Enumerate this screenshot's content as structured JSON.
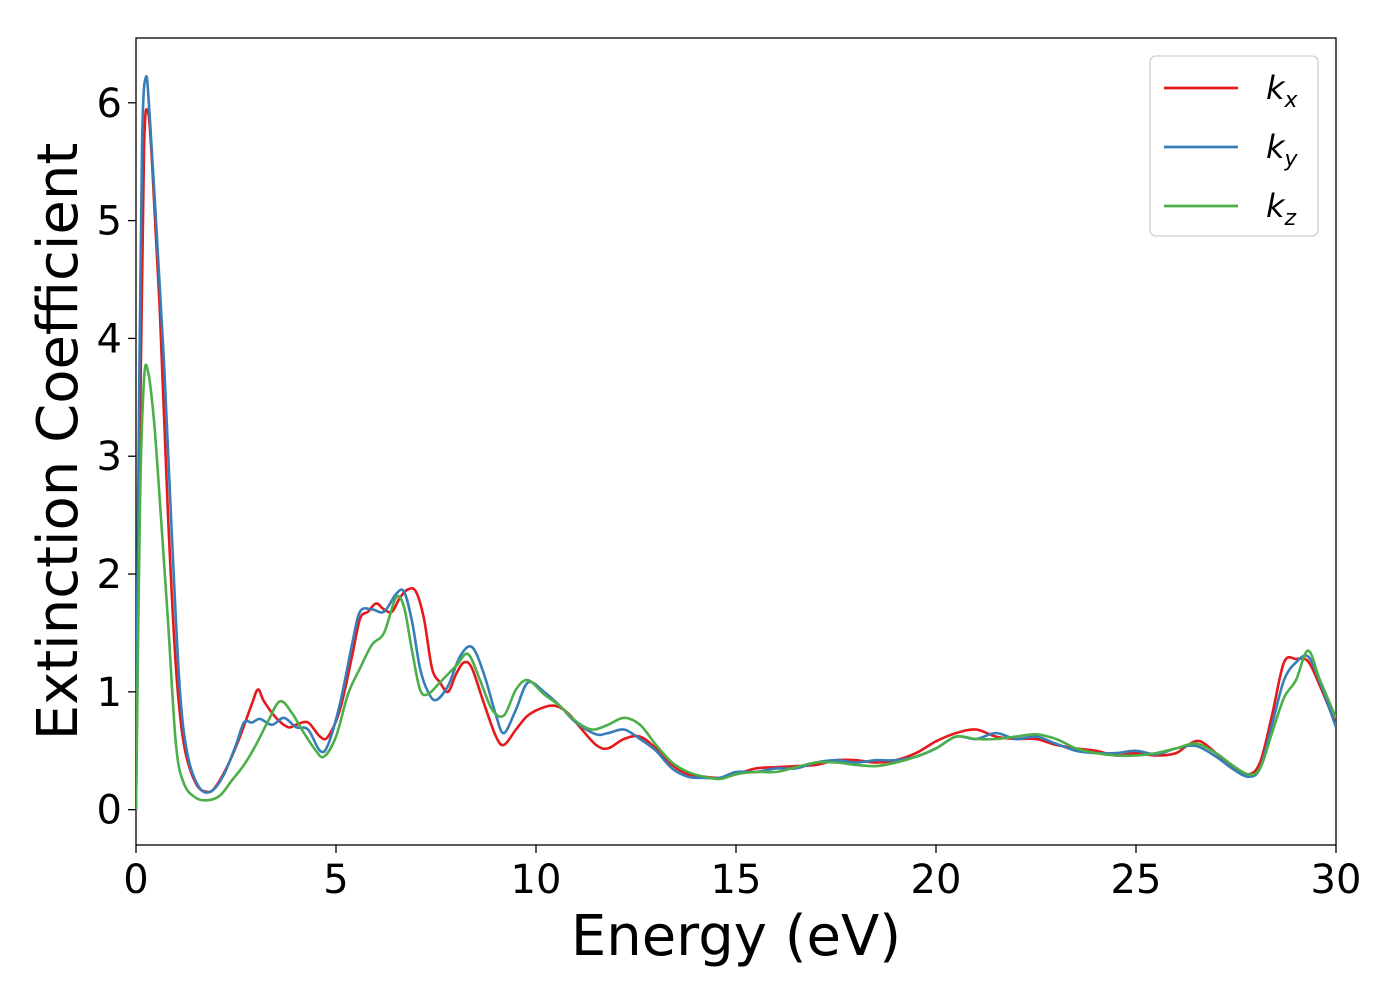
{
  "chart_data": {
    "type": "line",
    "title": "",
    "xlabel": "Energy (eV)",
    "ylabel": "Extinction Coefficient",
    "xlim": [
      0,
      30
    ],
    "ylim": [
      -0.3,
      6.55
    ],
    "xticks": [
      "0",
      "5",
      "10",
      "15",
      "20",
      "25",
      "30"
    ],
    "yticks": [
      "0",
      "1",
      "2",
      "3",
      "4",
      "5",
      "6"
    ],
    "grid": false,
    "legend_position": "top-right",
    "series": [
      {
        "name": "k",
        "subscript": "x",
        "color": "#e41a1c",
        "points": [
          [
            0,
            0.0
          ],
          [
            0.1,
            3.2
          ],
          [
            0.2,
            5.6
          ],
          [
            0.3,
            5.92
          ],
          [
            0.4,
            5.5
          ],
          [
            0.6,
            4.2
          ],
          [
            0.8,
            2.5
          ],
          [
            1.0,
            1.2
          ],
          [
            1.2,
            0.55
          ],
          [
            1.5,
            0.22
          ],
          [
            1.8,
            0.15
          ],
          [
            2.0,
            0.2
          ],
          [
            2.3,
            0.38
          ],
          [
            2.6,
            0.62
          ],
          [
            2.9,
            0.9
          ],
          [
            3.05,
            1.02
          ],
          [
            3.2,
            0.92
          ],
          [
            3.5,
            0.78
          ],
          [
            3.8,
            0.7
          ],
          [
            4.0,
            0.72
          ],
          [
            4.3,
            0.74
          ],
          [
            4.6,
            0.62
          ],
          [
            4.8,
            0.62
          ],
          [
            5.1,
            0.85
          ],
          [
            5.4,
            1.3
          ],
          [
            5.6,
            1.62
          ],
          [
            5.8,
            1.68
          ],
          [
            6.0,
            1.75
          ],
          [
            6.2,
            1.7
          ],
          [
            6.4,
            1.68
          ],
          [
            6.6,
            1.8
          ],
          [
            6.8,
            1.87
          ],
          [
            7.0,
            1.85
          ],
          [
            7.2,
            1.62
          ],
          [
            7.4,
            1.2
          ],
          [
            7.6,
            1.08
          ],
          [
            7.8,
            1.0
          ],
          [
            8.0,
            1.15
          ],
          [
            8.2,
            1.25
          ],
          [
            8.4,
            1.2
          ],
          [
            8.7,
            0.9
          ],
          [
            9.0,
            0.62
          ],
          [
            9.2,
            0.55
          ],
          [
            9.5,
            0.68
          ],
          [
            9.8,
            0.8
          ],
          [
            10.2,
            0.87
          ],
          [
            10.5,
            0.88
          ],
          [
            10.8,
            0.82
          ],
          [
            11.1,
            0.7
          ],
          [
            11.5,
            0.55
          ],
          [
            11.8,
            0.52
          ],
          [
            12.2,
            0.6
          ],
          [
            12.6,
            0.62
          ],
          [
            13.0,
            0.52
          ],
          [
            13.4,
            0.38
          ],
          [
            13.8,
            0.3
          ],
          [
            14.2,
            0.28
          ],
          [
            14.6,
            0.27
          ],
          [
            15.0,
            0.3
          ],
          [
            15.5,
            0.35
          ],
          [
            16.0,
            0.36
          ],
          [
            16.5,
            0.37
          ],
          [
            17.0,
            0.38
          ],
          [
            17.5,
            0.42
          ],
          [
            18.0,
            0.42
          ],
          [
            18.5,
            0.4
          ],
          [
            19.0,
            0.42
          ],
          [
            19.5,
            0.48
          ],
          [
            20.0,
            0.58
          ],
          [
            20.5,
            0.65
          ],
          [
            21.0,
            0.68
          ],
          [
            21.5,
            0.62
          ],
          [
            22.0,
            0.6
          ],
          [
            22.5,
            0.6
          ],
          [
            23.0,
            0.55
          ],
          [
            23.5,
            0.52
          ],
          [
            24.0,
            0.5
          ],
          [
            24.5,
            0.46
          ],
          [
            25.0,
            0.48
          ],
          [
            25.5,
            0.46
          ],
          [
            26.0,
            0.48
          ],
          [
            26.3,
            0.55
          ],
          [
            26.6,
            0.58
          ],
          [
            27.0,
            0.48
          ],
          [
            27.4,
            0.36
          ],
          [
            27.8,
            0.3
          ],
          [
            28.1,
            0.4
          ],
          [
            28.4,
            0.8
          ],
          [
            28.7,
            1.25
          ],
          [
            29.0,
            1.28
          ],
          [
            29.3,
            1.26
          ],
          [
            29.6,
            1.05
          ],
          [
            30.0,
            0.72
          ]
        ]
      },
      {
        "name": "k",
        "subscript": "y",
        "color": "#377eb8",
        "points": [
          [
            0,
            0.0
          ],
          [
            0.05,
            2.5
          ],
          [
            0.15,
            5.6
          ],
          [
            0.25,
            6.22
          ],
          [
            0.35,
            5.85
          ],
          [
            0.5,
            5.0
          ],
          [
            0.7,
            3.8
          ],
          [
            0.9,
            2.3
          ],
          [
            1.1,
            1.0
          ],
          [
            1.3,
            0.45
          ],
          [
            1.6,
            0.18
          ],
          [
            1.9,
            0.16
          ],
          [
            2.2,
            0.3
          ],
          [
            2.5,
            0.55
          ],
          [
            2.7,
            0.74
          ],
          [
            2.9,
            0.74
          ],
          [
            3.1,
            0.77
          ],
          [
            3.4,
            0.72
          ],
          [
            3.7,
            0.78
          ],
          [
            4.0,
            0.7
          ],
          [
            4.3,
            0.68
          ],
          [
            4.6,
            0.5
          ],
          [
            4.8,
            0.55
          ],
          [
            5.1,
            0.9
          ],
          [
            5.4,
            1.4
          ],
          [
            5.6,
            1.68
          ],
          [
            5.9,
            1.7
          ],
          [
            6.2,
            1.68
          ],
          [
            6.5,
            1.83
          ],
          [
            6.7,
            1.85
          ],
          [
            6.9,
            1.6
          ],
          [
            7.1,
            1.2
          ],
          [
            7.3,
            1.0
          ],
          [
            7.5,
            0.93
          ],
          [
            7.8,
            1.05
          ],
          [
            8.1,
            1.3
          ],
          [
            8.4,
            1.38
          ],
          [
            8.7,
            1.15
          ],
          [
            9.0,
            0.8
          ],
          [
            9.2,
            0.65
          ],
          [
            9.5,
            0.85
          ],
          [
            9.8,
            1.08
          ],
          [
            10.2,
            1.0
          ],
          [
            10.6,
            0.88
          ],
          [
            11.0,
            0.74
          ],
          [
            11.5,
            0.64
          ],
          [
            11.8,
            0.65
          ],
          [
            12.2,
            0.68
          ],
          [
            12.6,
            0.6
          ],
          [
            13.0,
            0.5
          ],
          [
            13.4,
            0.35
          ],
          [
            13.8,
            0.28
          ],
          [
            14.2,
            0.27
          ],
          [
            14.6,
            0.27
          ],
          [
            15.0,
            0.32
          ],
          [
            15.5,
            0.32
          ],
          [
            16.0,
            0.35
          ],
          [
            16.5,
            0.35
          ],
          [
            17.0,
            0.4
          ],
          [
            17.5,
            0.42
          ],
          [
            18.0,
            0.4
          ],
          [
            18.5,
            0.42
          ],
          [
            19.0,
            0.42
          ],
          [
            19.5,
            0.45
          ],
          [
            20.0,
            0.52
          ],
          [
            20.5,
            0.62
          ],
          [
            21.0,
            0.6
          ],
          [
            21.5,
            0.65
          ],
          [
            22.0,
            0.6
          ],
          [
            22.5,
            0.62
          ],
          [
            23.0,
            0.56
          ],
          [
            23.5,
            0.5
          ],
          [
            24.0,
            0.48
          ],
          [
            24.5,
            0.48
          ],
          [
            25.0,
            0.5
          ],
          [
            25.5,
            0.47
          ],
          [
            26.0,
            0.52
          ],
          [
            26.5,
            0.54
          ],
          [
            27.0,
            0.45
          ],
          [
            27.4,
            0.35
          ],
          [
            27.8,
            0.28
          ],
          [
            28.1,
            0.35
          ],
          [
            28.4,
            0.72
          ],
          [
            28.7,
            1.1
          ],
          [
            29.0,
            1.25
          ],
          [
            29.3,
            1.3
          ],
          [
            29.6,
            1.08
          ],
          [
            30.0,
            0.7
          ]
        ]
      },
      {
        "name": "k",
        "subscript": "z",
        "color": "#4daf4a",
        "points": [
          [
            0,
            0.0
          ],
          [
            0.1,
            2.6
          ],
          [
            0.2,
            3.65
          ],
          [
            0.3,
            3.72
          ],
          [
            0.45,
            3.3
          ],
          [
            0.6,
            2.6
          ],
          [
            0.8,
            1.6
          ],
          [
            1.0,
            0.55
          ],
          [
            1.2,
            0.22
          ],
          [
            1.5,
            0.1
          ],
          [
            1.8,
            0.08
          ],
          [
            2.1,
            0.12
          ],
          [
            2.4,
            0.25
          ],
          [
            2.7,
            0.38
          ],
          [
            3.0,
            0.55
          ],
          [
            3.3,
            0.75
          ],
          [
            3.6,
            0.92
          ],
          [
            3.9,
            0.82
          ],
          [
            4.2,
            0.65
          ],
          [
            4.5,
            0.5
          ],
          [
            4.7,
            0.45
          ],
          [
            5.0,
            0.62
          ],
          [
            5.3,
            0.98
          ],
          [
            5.6,
            1.2
          ],
          [
            5.9,
            1.4
          ],
          [
            6.2,
            1.5
          ],
          [
            6.5,
            1.8
          ],
          [
            6.7,
            1.72
          ],
          [
            6.9,
            1.35
          ],
          [
            7.1,
            1.02
          ],
          [
            7.3,
            0.98
          ],
          [
            7.6,
            1.08
          ],
          [
            8.0,
            1.22
          ],
          [
            8.3,
            1.32
          ],
          [
            8.6,
            1.1
          ],
          [
            8.9,
            0.85
          ],
          [
            9.2,
            0.8
          ],
          [
            9.5,
            1.02
          ],
          [
            9.8,
            1.1
          ],
          [
            10.2,
            0.98
          ],
          [
            10.6,
            0.88
          ],
          [
            11.0,
            0.75
          ],
          [
            11.4,
            0.68
          ],
          [
            11.8,
            0.72
          ],
          [
            12.2,
            0.78
          ],
          [
            12.6,
            0.72
          ],
          [
            13.0,
            0.55
          ],
          [
            13.4,
            0.4
          ],
          [
            13.8,
            0.32
          ],
          [
            14.2,
            0.28
          ],
          [
            14.6,
            0.26
          ],
          [
            15.0,
            0.3
          ],
          [
            15.5,
            0.32
          ],
          [
            16.0,
            0.32
          ],
          [
            16.5,
            0.36
          ],
          [
            17.0,
            0.4
          ],
          [
            17.5,
            0.4
          ],
          [
            18.0,
            0.38
          ],
          [
            18.5,
            0.37
          ],
          [
            19.0,
            0.4
          ],
          [
            19.5,
            0.45
          ],
          [
            20.0,
            0.52
          ],
          [
            20.5,
            0.62
          ],
          [
            21.0,
            0.6
          ],
          [
            21.5,
            0.6
          ],
          [
            22.0,
            0.62
          ],
          [
            22.5,
            0.64
          ],
          [
            23.0,
            0.6
          ],
          [
            23.5,
            0.52
          ],
          [
            24.0,
            0.48
          ],
          [
            24.5,
            0.46
          ],
          [
            25.0,
            0.46
          ],
          [
            25.5,
            0.48
          ],
          [
            26.0,
            0.52
          ],
          [
            26.5,
            0.56
          ],
          [
            27.0,
            0.48
          ],
          [
            27.4,
            0.38
          ],
          [
            27.8,
            0.3
          ],
          [
            28.1,
            0.35
          ],
          [
            28.4,
            0.65
          ],
          [
            28.7,
            0.95
          ],
          [
            29.0,
            1.1
          ],
          [
            29.3,
            1.35
          ],
          [
            29.6,
            1.1
          ],
          [
            30.0,
            0.78
          ]
        ]
      }
    ]
  }
}
